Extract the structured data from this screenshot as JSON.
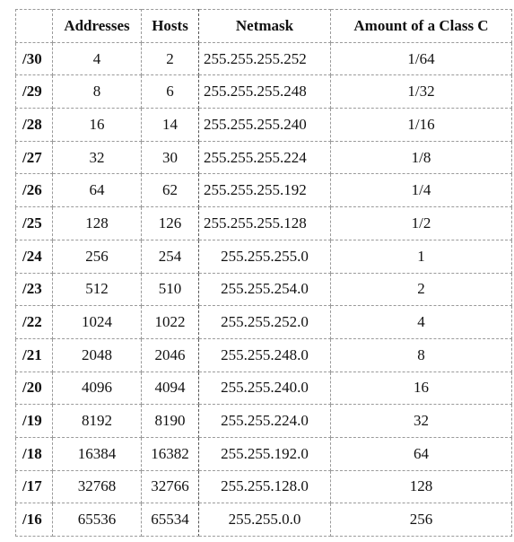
{
  "headers": {
    "prefix": "",
    "addresses": "Addresses",
    "hosts": "Hosts",
    "netmask": "Netmask",
    "class_c": "Amount of a Class C"
  },
  "rows": [
    {
      "prefix": "/30",
      "addresses": "4",
      "hosts": "2",
      "netmask": "255.255.255.252",
      "class_c": "1/64"
    },
    {
      "prefix": "/29",
      "addresses": "8",
      "hosts": "6",
      "netmask": "255.255.255.248",
      "class_c": "1/32"
    },
    {
      "prefix": "/28",
      "addresses": "16",
      "hosts": "14",
      "netmask": "255.255.255.240",
      "class_c": "1/16"
    },
    {
      "prefix": "/27",
      "addresses": "32",
      "hosts": "30",
      "netmask": "255.255.255.224",
      "class_c": "1/8"
    },
    {
      "prefix": "/26",
      "addresses": "64",
      "hosts": "62",
      "netmask": "255.255.255.192",
      "class_c": "1/4"
    },
    {
      "prefix": "/25",
      "addresses": "128",
      "hosts": "126",
      "netmask": "255.255.255.128",
      "class_c": "1/2"
    },
    {
      "prefix": "/24",
      "addresses": "256",
      "hosts": "254",
      "netmask": "255.255.255.0",
      "class_c": "1"
    },
    {
      "prefix": "/23",
      "addresses": "512",
      "hosts": "510",
      "netmask": "255.255.254.0",
      "class_c": "2"
    },
    {
      "prefix": "/22",
      "addresses": "1024",
      "hosts": "1022",
      "netmask": "255.255.252.0",
      "class_c": "4"
    },
    {
      "prefix": "/21",
      "addresses": "2048",
      "hosts": "2046",
      "netmask": "255.255.248.0",
      "class_c": "8"
    },
    {
      "prefix": "/20",
      "addresses": "4096",
      "hosts": "4094",
      "netmask": "255.255.240.0",
      "class_c": "16"
    },
    {
      "prefix": "/19",
      "addresses": "8192",
      "hosts": "8190",
      "netmask": "255.255.224.0",
      "class_c": "32"
    },
    {
      "prefix": "/18",
      "addresses": "16384",
      "hosts": "16382",
      "netmask": "255.255.192.0",
      "class_c": "64"
    },
    {
      "prefix": "/17",
      "addresses": "32768",
      "hosts": "32766",
      "netmask": "255.255.128.0",
      "class_c": "128"
    },
    {
      "prefix": "/16",
      "addresses": "65536",
      "hosts": "65534",
      "netmask": "255.255.0.0",
      "class_c": "256"
    }
  ]
}
